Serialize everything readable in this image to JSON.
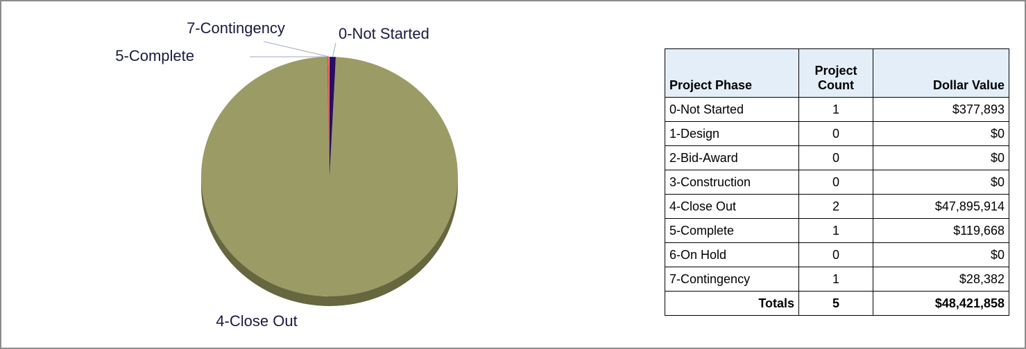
{
  "chart_data": {
    "type": "pie",
    "categories": [
      "0-Not Started",
      "4-Close Out",
      "5-Complete",
      "7-Contingency"
    ],
    "values": [
      377893,
      47895914,
      119668,
      28382
    ],
    "colors": [
      "#2b0c63",
      "#9b9b66",
      "#e05555",
      "#c8d8f0"
    ]
  },
  "table": {
    "header": [
      "Project Phase",
      "Project Count",
      "Dollar Value"
    ],
    "rows": [
      [
        "0-Not Started",
        "1",
        "$377,893"
      ],
      [
        "1-Design",
        "0",
        "$0"
      ],
      [
        "2-Bid-Award",
        "0",
        "$0"
      ],
      [
        "3-Construction",
        "0",
        "$0"
      ],
      [
        "4-Close Out",
        "2",
        "$47,895,914"
      ],
      [
        "5-Complete",
        "1",
        "$119,668"
      ],
      [
        "6-On Hold",
        "0",
        "$0"
      ],
      [
        "7-Contingency",
        "1",
        "$28,382"
      ]
    ],
    "totals": [
      "Totals",
      "5",
      "$48,421,858"
    ]
  }
}
